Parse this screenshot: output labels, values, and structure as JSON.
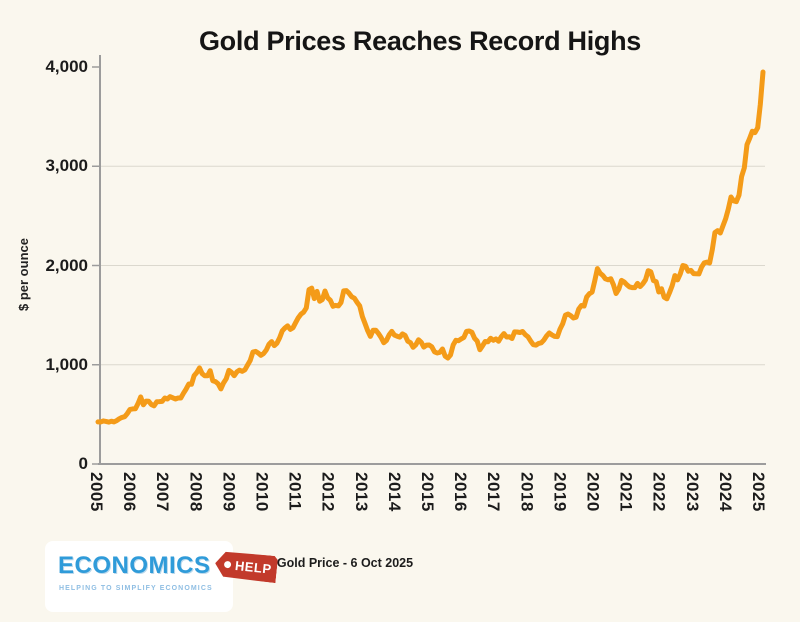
{
  "title": "Gold Prices Reaches Record Highs",
  "caption": "Gold Price - 6 Oct 2025",
  "logo": {
    "name": "ECONOMICS",
    "tag": "HELP",
    "tagline": "HELPING TO SIMPLIFY ECONOMICS",
    "name_color": "#2F9BD9",
    "tag_color": "#C23A2B",
    "tagline_color": "#8FBEE3"
  },
  "colors": {
    "background": "#FAF7EE",
    "line": "#F49B18",
    "axis": "#9C9C9C",
    "gridline": "#DBD8CE",
    "text": "#1c1c1c"
  },
  "chart_data": {
    "type": "line",
    "title": "Gold Prices Reaches Record Highs",
    "xlabel": "",
    "ylabel": "$ per ounce",
    "ylim": [
      0,
      4000
    ],
    "y_ticks": [
      0,
      1000,
      2000,
      3000,
      4000
    ],
    "y_tick_labels": [
      "0",
      "1,000",
      "2,000",
      "3,000",
      "4,000"
    ],
    "grid_values": [
      1000,
      2000,
      3000
    ],
    "grid": "horizontal only",
    "legend_position": "none",
    "x_tick_labels": [
      "2005",
      "2006",
      "2007",
      "2008",
      "2009",
      "2010",
      "2011",
      "2012",
      "2013",
      "2014",
      "2015",
      "2016",
      "2017",
      "2018",
      "2019",
      "2020",
      "2021",
      "2022",
      "2023",
      "2024",
      "2025"
    ],
    "series": [
      {
        "name": "Gold price, $ per ounce (monthly, Jan 2005 - Oct 2025)",
        "start_year": 2005,
        "frequency": "monthly",
        "values": [
          424,
          423,
          434,
          429,
          422,
          431,
          424,
          437,
          456,
          470,
          477,
          510,
          550,
          555,
          557,
          611,
          676,
          596,
          634,
          632,
          598,
          586,
          628,
          629,
          631,
          665,
          655,
          679,
          667,
          655,
          665,
          665,
          713,
          755,
          806,
          803,
          890,
          922,
          968,
          910,
          889,
          889,
          940,
          839,
          830,
          807,
          757,
          816,
          858,
          943,
          924,
          890,
          929,
          946,
          934,
          949,
          997,
          1043,
          1127,
          1135,
          1118,
          1095,
          1113,
          1149,
          1205,
          1233,
          1193,
          1216,
          1271,
          1342,
          1370,
          1391,
          1356,
          1373,
          1424,
          1474,
          1510,
          1529,
          1573,
          1756,
          1772,
          1666,
          1739,
          1640,
          1656,
          1743,
          1674,
          1650,
          1589,
          1598,
          1593,
          1626,
          1744,
          1747,
          1721,
          1685,
          1671,
          1628,
          1593,
          1485,
          1414,
          1343,
          1286,
          1347,
          1348,
          1316,
          1275,
          1222,
          1244,
          1301,
          1336,
          1299,
          1288,
          1279,
          1311,
          1296,
          1237,
          1222,
          1176,
          1201,
          1251,
          1227,
          1178,
          1198,
          1199,
          1181,
          1130,
          1118,
          1125,
          1159,
          1086,
          1068,
          1098,
          1200,
          1246,
          1242,
          1260,
          1276,
          1337,
          1340,
          1327,
          1266,
          1238,
          1152,
          1192,
          1234,
          1231,
          1266,
          1246,
          1260,
          1237,
          1283,
          1314,
          1280,
          1282,
          1264,
          1331,
          1330,
          1325,
          1335,
          1303,
          1282,
          1238,
          1202,
          1198,
          1215,
          1221,
          1250,
          1292,
          1320,
          1301,
          1286,
          1284,
          1359,
          1413,
          1499,
          1511,
          1495,
          1471,
          1479,
          1561,
          1597,
          1592,
          1683,
          1716,
          1732,
          1843,
          1969,
          1922,
          1900,
          1866,
          1856,
          1867,
          1808,
          1718,
          1762,
          1850,
          1835,
          1807,
          1784,
          1777,
          1777,
          1820,
          1787,
          1816,
          1856,
          1948,
          1937,
          1848,
          1837,
          1733,
          1766,
          1681,
          1664,
          1726,
          1797,
          1898,
          1855,
          1913,
          2000,
          1992,
          1943,
          1951,
          1918,
          1916,
          1915,
          1984,
          2026,
          2034,
          2025,
          2160,
          2331,
          2351,
          2327,
          2398,
          2470,
          2568,
          2690,
          2652,
          2644,
          2708,
          2897,
          2983,
          3218,
          3280,
          3353,
          3339,
          3388,
          3622,
          3950
        ]
      }
    ],
    "line_color": "#F49B18"
  }
}
